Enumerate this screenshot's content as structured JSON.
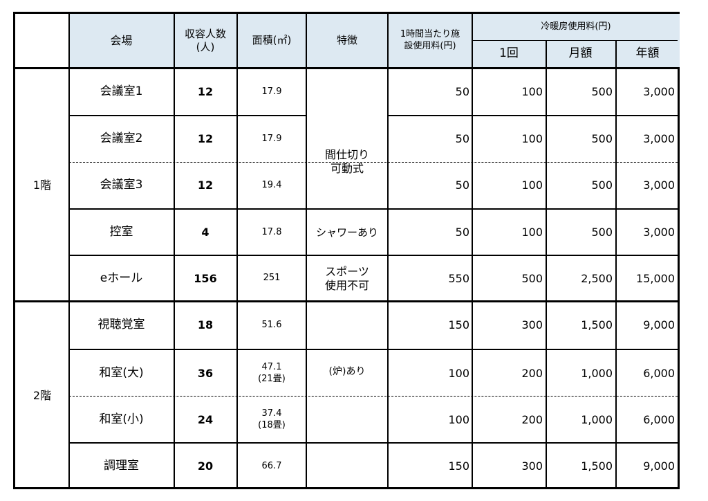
{
  "headers": {
    "venue": "会場",
    "capacity": "収容人数\n(人)",
    "area": "面積(㎡)",
    "features": "特徴",
    "hourly_fee": "1時間当たり施\n設使用料(円)",
    "hvac_fee": "冷暖房使用料(円)",
    "hvac_once": "1回",
    "hvac_monthly": "月額",
    "hvac_yearly": "年額"
  },
  "floors": [
    {
      "label": "1階"
    },
    {
      "label": "2階"
    }
  ],
  "rows": [
    {
      "room": "会議室1",
      "capacity": "12",
      "area": "17.9",
      "hourly": "50",
      "once": "100",
      "monthly": "500",
      "yearly": "3,000"
    },
    {
      "room": "会議室2",
      "capacity": "12",
      "area": "17.9",
      "hourly": "50",
      "once": "100",
      "monthly": "500",
      "yearly": "3,000"
    },
    {
      "room": "会議室3",
      "capacity": "12",
      "area": "19.4",
      "hourly": "50",
      "once": "100",
      "monthly": "500",
      "yearly": "3,000"
    },
    {
      "room": "控室",
      "capacity": "4",
      "area": "17.8",
      "hourly": "50",
      "once": "100",
      "monthly": "500",
      "yearly": "3,000"
    },
    {
      "room": "eホール",
      "capacity": "156",
      "area": "251",
      "hourly": "550",
      "once": "500",
      "monthly": "2,500",
      "yearly": "15,000"
    },
    {
      "room": "視聴覚室",
      "capacity": "18",
      "area": "51.6",
      "hourly": "150",
      "once": "300",
      "monthly": "1,500",
      "yearly": "9,000"
    },
    {
      "room": "和室(大)",
      "capacity": "36",
      "area": "47.1\n(21畳)",
      "hourly": "100",
      "once": "200",
      "monthly": "1,000",
      "yearly": "6,000"
    },
    {
      "room": "和室(小)",
      "capacity": "24",
      "area": "37.4\n(18畳)",
      "hourly": "100",
      "once": "200",
      "monthly": "1,000",
      "yearly": "6,000"
    },
    {
      "room": "調理室",
      "capacity": "20",
      "area": "66.7",
      "hourly": "150",
      "once": "300",
      "monthly": "1,500",
      "yearly": "9,000"
    }
  ],
  "features": [
    {
      "text": "間仕切り\n可動式"
    },
    {
      "text": "シャワーあり"
    },
    {
      "text": "スポーツ\n使用不可"
    },
    {
      "text": "(炉)あり"
    }
  ]
}
